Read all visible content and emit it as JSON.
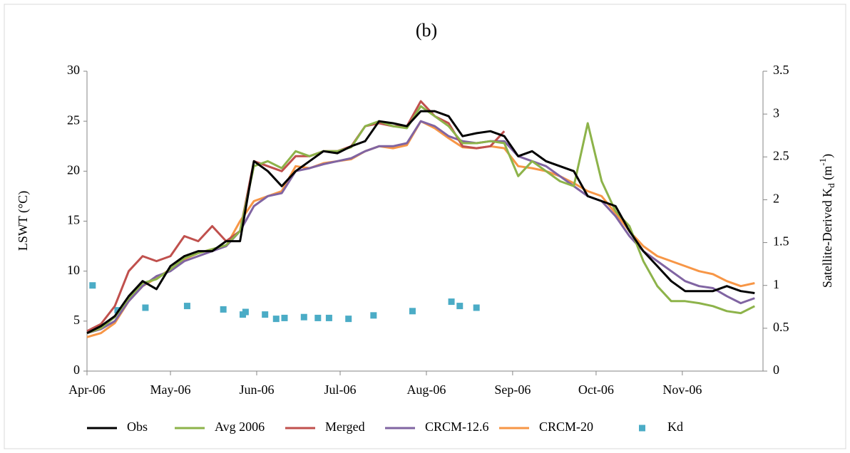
{
  "chart_data": {
    "type": "line",
    "title": "(b)",
    "ylabel": "LSWT (°C)",
    "y2label": [
      "Satellite-Derived K",
      "d",
      " (m",
      "-1",
      ")"
    ],
    "xlim": [
      0,
      243
    ],
    "xticks": [
      {
        "value": 0,
        "label": "Apr-06"
      },
      {
        "value": 30,
        "label": "May-06"
      },
      {
        "value": 61,
        "label": "Jun-06"
      },
      {
        "value": 91,
        "label": "Jul-06"
      },
      {
        "value": 122,
        "label": "Aug-06"
      },
      {
        "value": 153,
        "label": "Sep-06"
      },
      {
        "value": 183,
        "label": "Oct-06"
      },
      {
        "value": 214,
        "label": "Nov-06"
      }
    ],
    "ylim": [
      0,
      30
    ],
    "yticks": [
      0,
      5,
      10,
      15,
      20,
      25,
      30
    ],
    "y2lim": [
      0,
      3.5
    ],
    "y2ticks": [
      0,
      0.5,
      1,
      1.5,
      2,
      2.5,
      3,
      3.5
    ],
    "x": [
      0,
      5,
      10,
      15,
      20,
      25,
      30,
      35,
      40,
      45,
      50,
      55,
      60,
      65,
      70,
      75,
      80,
      85,
      90,
      95,
      100,
      105,
      110,
      115,
      120,
      125,
      130,
      135,
      140,
      145,
      150,
      155,
      160,
      165,
      170,
      175,
      180,
      185,
      190,
      195,
      200,
      205,
      210,
      215,
      220,
      225,
      230,
      235,
      240
    ],
    "series": [
      {
        "name": "Obs",
        "color": "#000000",
        "values": [
          3.8,
          4.5,
          5.5,
          7.5,
          9,
          8.2,
          10.5,
          11.5,
          12,
          12,
          13,
          13,
          21,
          20,
          18.5,
          20,
          21,
          22,
          21.8,
          22.5,
          23,
          25,
          24.8,
          24.5,
          26,
          26,
          25.5,
          23.5,
          23.8,
          24,
          23.5,
          21.5,
          22,
          21,
          20.5,
          20,
          17.5,
          17,
          16.5,
          14,
          12,
          10.5,
          9,
          8,
          8,
          8,
          8.5,
          8,
          7.8
        ]
      },
      {
        "name": "Avg 2006",
        "color": "#8db34a",
        "values": [
          3.8,
          4.3,
          5.4,
          7.3,
          8.8,
          9.2,
          10.2,
          11.3,
          11.8,
          12.2,
          12.6,
          14,
          20.5,
          21,
          20.3,
          22,
          21.5,
          22,
          22,
          22.4,
          24.5,
          25,
          24.5,
          24.3,
          26.5,
          25.5,
          24.5,
          22.8,
          22.8,
          23,
          22.8,
          19.5,
          21,
          20,
          19,
          18.5,
          24.8,
          19,
          16,
          14.5,
          11,
          8.5,
          7,
          7,
          6.8,
          6.5,
          6,
          5.8,
          6.5
        ]
      },
      {
        "name": "Merged",
        "color": "#c0504d",
        "values": [
          4,
          4.7,
          6.5,
          10,
          11.5,
          11,
          11.5,
          13.5,
          13,
          14.5,
          13,
          14,
          21,
          20.5,
          20,
          21.5,
          21.5,
          22,
          22,
          22.5,
          24.5,
          24.8,
          24.5,
          24.5,
          27,
          25.5,
          24.8,
          22.5,
          22.3,
          22.5,
          24,
          null,
          null,
          null,
          null,
          null,
          null,
          null,
          null,
          null,
          null,
          null,
          null,
          null,
          null,
          null,
          null,
          null,
          null
        ]
      },
      {
        "name": "CRCM-12.6",
        "color": "#8064a2",
        "values": [
          3.8,
          4.2,
          5,
          7,
          8.5,
          9.5,
          10,
          11,
          11.5,
          12,
          12.5,
          14,
          16.5,
          17.5,
          17.8,
          20,
          20.3,
          20.7,
          21,
          21.3,
          22,
          22.5,
          22.5,
          22.8,
          25,
          24.5,
          23.5,
          23,
          22.8,
          23,
          23,
          21.5,
          21,
          20.5,
          19.5,
          18.5,
          17.5,
          17,
          15.5,
          13.5,
          12,
          11,
          10,
          9,
          8.5,
          8.3,
          7.5,
          6.8,
          7.3
        ]
      },
      {
        "name": "CRCM-20",
        "color": "#f79646",
        "values": [
          3.4,
          3.8,
          4.8,
          7,
          8.5,
          9.3,
          10.2,
          11.2,
          11.8,
          12.2,
          12.5,
          15,
          17,
          17.5,
          18,
          20.5,
          20.3,
          20.8,
          21,
          21.2,
          22,
          22.5,
          22.3,
          22.6,
          25,
          24.3,
          23.3,
          22.4,
          22.3,
          22.5,
          22.3,
          20.5,
          20.3,
          20,
          19.5,
          18.8,
          18,
          17.5,
          15.8,
          14,
          12.5,
          11.5,
          11,
          10.5,
          10,
          9.7,
          9,
          8.5,
          8.8
        ]
      },
      {
        "name": "Kd",
        "type": "scatter",
        "axis": "y2",
        "color": "#4bacc6",
        "x": [
          2,
          11,
          21,
          36,
          49,
          56,
          57,
          64,
          68,
          71,
          78,
          83,
          87,
          94,
          103,
          117,
          131,
          134,
          140
        ],
        "values": [
          1.0,
          0.71,
          0.74,
          0.76,
          0.72,
          0.66,
          0.69,
          0.66,
          0.61,
          0.62,
          0.63,
          0.62,
          0.62,
          0.61,
          0.65,
          0.7,
          0.81,
          0.76,
          0.74
        ]
      }
    ]
  }
}
